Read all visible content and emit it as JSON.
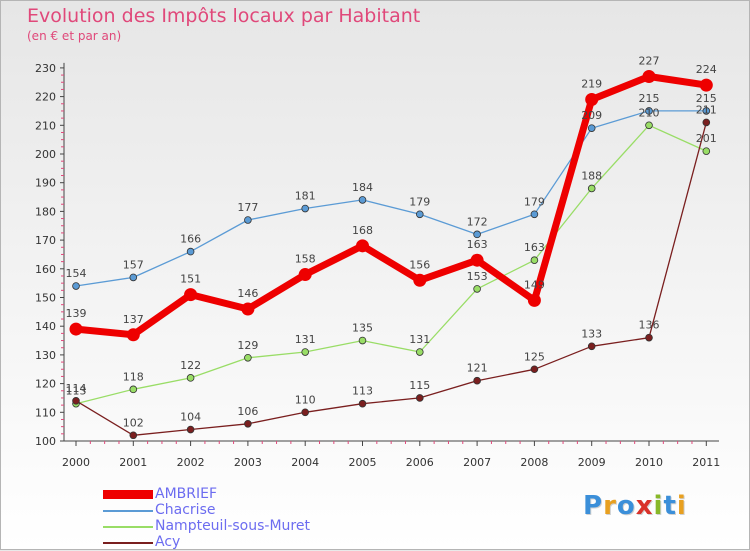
{
  "title": "Evolution des Impôts locaux par Habitant",
  "subtitle": "(en € et par an)",
  "brand": "Proxiti",
  "chart_data": {
    "type": "line",
    "title": "Evolution des Impôts locaux par Habitant",
    "subtitle": "(en € et par an)",
    "xlabel": "",
    "ylabel": "",
    "categories": [
      "2000",
      "2001",
      "2002",
      "2003",
      "2004",
      "2005",
      "2006",
      "2007",
      "2008",
      "2009",
      "2010",
      "2011"
    ],
    "ylim": [
      100,
      230
    ],
    "yticks": [
      100,
      110,
      120,
      130,
      140,
      150,
      160,
      170,
      180,
      190,
      200,
      210,
      220,
      230
    ],
    "grid": false,
    "legend_position": "bottom-left",
    "series": [
      {
        "name": "AMBRIEF",
        "color": "#ee0000",
        "values": [
          139,
          137,
          151,
          146,
          158,
          168,
          156,
          163,
          149,
          219,
          227,
          224
        ]
      },
      {
        "name": "Chacrise",
        "color": "#5b9bd5",
        "values": [
          154,
          157,
          166,
          177,
          181,
          184,
          179,
          172,
          179,
          209,
          215,
          215
        ]
      },
      {
        "name": "Nampteuil-sous-Muret",
        "color": "#99dd66",
        "values": [
          113,
          118,
          122,
          129,
          131,
          135,
          131,
          153,
          163,
          188,
          210,
          201
        ]
      },
      {
        "name": "Acy",
        "color": "#7a1f1f",
        "values": [
          114,
          102,
          104,
          106,
          110,
          113,
          115,
          121,
          125,
          133,
          136,
          211
        ]
      }
    ]
  }
}
